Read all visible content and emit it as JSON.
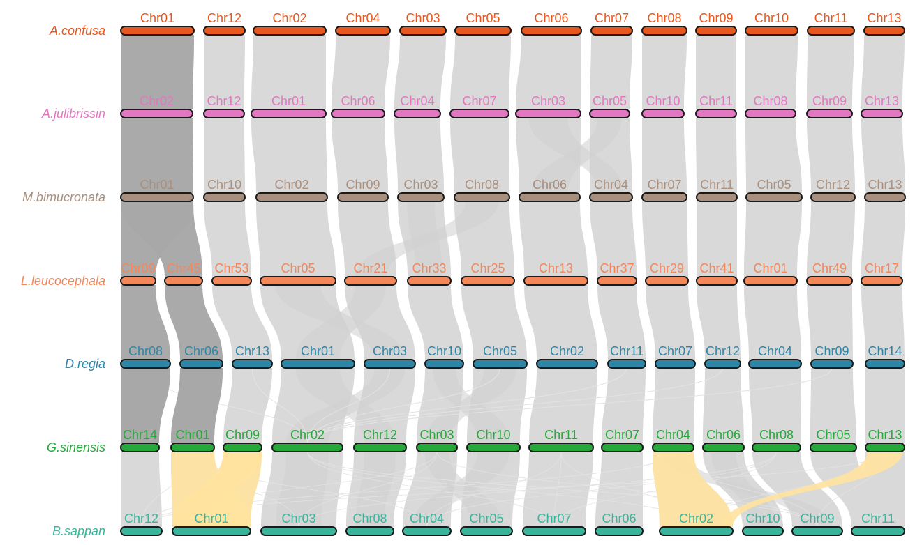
{
  "diagram": {
    "type": "multi-species-synteny",
    "colors": {
      "link_default": "#d9d9d9",
      "link_highlight_dark": "#a8a8a8",
      "link_highlight_yellow": "#ffe39e",
      "chromosome_outline": "#1a1a1a"
    },
    "species": [
      {
        "name": "A.confusa",
        "color": "#e8571e",
        "chromosomes": [
          "Chr01",
          "Chr12",
          "Chr02",
          "Chr04",
          "Chr03",
          "Chr05",
          "Chr06",
          "Chr07",
          "Chr08",
          "Chr09",
          "Chr10",
          "Chr11",
          "Chr13"
        ]
      },
      {
        "name": "A.julibrissin",
        "color": "#e377c2",
        "chromosomes": [
          "Chr02",
          "Chr12",
          "Chr01",
          "Chr06",
          "Chr04",
          "Chr07",
          "Chr03",
          "Chr05",
          "Chr10",
          "Chr11",
          "Chr08",
          "Chr09",
          "Chr13"
        ]
      },
      {
        "name": "M.bimucronata",
        "color": "#a98f7e",
        "chromosomes": [
          "Chr01",
          "Chr10",
          "Chr02",
          "Chr09",
          "Chr03",
          "Chr08",
          "Chr06",
          "Chr04",
          "Chr07",
          "Chr11",
          "Chr05",
          "Chr12",
          "Chr13"
        ]
      },
      {
        "name": "L.leucocephala",
        "color": "#f4875a",
        "chromosomes": [
          "Chr09",
          "Chr45",
          "Chr53",
          "Chr05",
          "Chr21",
          "Chr33",
          "Chr25",
          "Chr13",
          "Chr37",
          "Chr29",
          "Chr41",
          "Chr01",
          "Chr49",
          "Chr17"
        ]
      },
      {
        "name": "D.regia",
        "color": "#2e86a7",
        "chromosomes": [
          "Chr08",
          "Chr06",
          "Chr13",
          "Chr01",
          "Chr03",
          "Chr10",
          "Chr05",
          "Chr02",
          "Chr11",
          "Chr07",
          "Chr12",
          "Chr04",
          "Chr09",
          "Chr14"
        ]
      },
      {
        "name": "G.sinensis",
        "color": "#26a83b",
        "chromosomes": [
          "Chr14",
          "Chr01",
          "Chr09",
          "Chr02",
          "Chr12",
          "Chr03",
          "Chr10",
          "Chr11",
          "Chr07",
          "Chr04",
          "Chr06",
          "Chr08",
          "Chr05",
          "Chr13"
        ]
      },
      {
        "name": "B.sappan",
        "color": "#3ab59b",
        "chromosomes": [
          "Chr12",
          "Chr01",
          "Chr03",
          "Chr08",
          "Chr04",
          "Chr05",
          "Chr07",
          "Chr06",
          "Chr02",
          "Chr10",
          "Chr09",
          "Chr11"
        ]
      }
    ]
  }
}
